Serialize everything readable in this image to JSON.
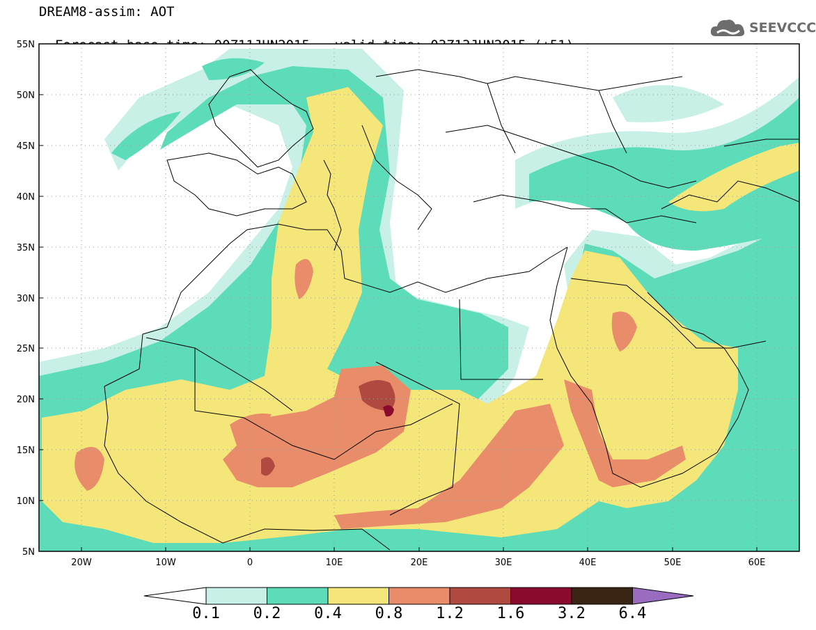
{
  "header": {
    "line1": "DREAM8-assim: AOT",
    "base": "Forecast base time: 00Z11JUN2015",
    "valid": "valid time: 03Z13JUN2015 (+51)"
  },
  "logo": {
    "text": "SEEVCCC",
    "icon": "cloud-icon"
  },
  "map": {
    "lat_labels": [
      "55N",
      "50N",
      "45N",
      "40N",
      "35N",
      "30N",
      "25N",
      "20N",
      "15N",
      "10N",
      "5N"
    ],
    "lon_labels": [
      "20W",
      "10W",
      "0",
      "10E",
      "20E",
      "30E",
      "40E",
      "50E",
      "60E"
    ],
    "lon_range": [
      -25,
      65
    ],
    "lat_range": [
      5,
      55
    ],
    "grid": "dotted"
  },
  "colorbar": {
    "labels": [
      "0.1",
      "0.2",
      "0.4",
      "0.8",
      "1.2",
      "1.6",
      "3.2",
      "6.4"
    ],
    "colors": [
      "#ffffff",
      "#c8f0e6",
      "#5ddcb9",
      "#f5e67a",
      "#e88c6a",
      "#b04a40",
      "#8a0a2e",
      "#3a2414",
      "#9a6cc0"
    ]
  }
}
